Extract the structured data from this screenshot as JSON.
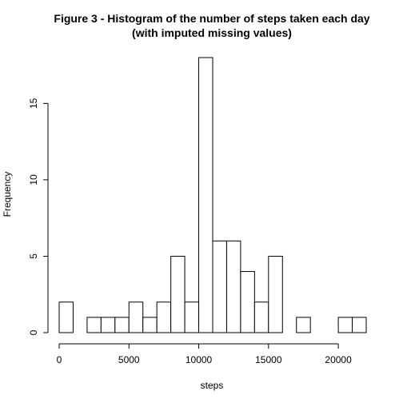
{
  "chart_data": {
    "type": "bar",
    "title_line1": "Figure 3 - Histogram of the number of steps taken each day",
    "title_line2": "(with imputed missing values)",
    "xlabel": "steps",
    "ylabel": "Frequency",
    "bin_width": 1000,
    "bin_starts": [
      0,
      1000,
      2000,
      3000,
      4000,
      5000,
      6000,
      7000,
      8000,
      9000,
      10000,
      11000,
      12000,
      13000,
      14000,
      15000,
      16000,
      17000,
      18000,
      19000,
      20000,
      21000
    ],
    "values": [
      2,
      0,
      1,
      1,
      1,
      2,
      1,
      2,
      5,
      2,
      18,
      6,
      6,
      4,
      2,
      5,
      0,
      1,
      0,
      0,
      1,
      1
    ],
    "xlim": [
      0,
      22000
    ],
    "ylim": [
      0,
      18
    ],
    "x_ticks": [
      0,
      5000,
      10000,
      15000,
      20000
    ],
    "y_ticks": [
      0,
      5,
      10,
      15
    ],
    "bar_fill": "#ffffff",
    "bar_stroke": "#000000",
    "grid": false,
    "legend": "none"
  }
}
